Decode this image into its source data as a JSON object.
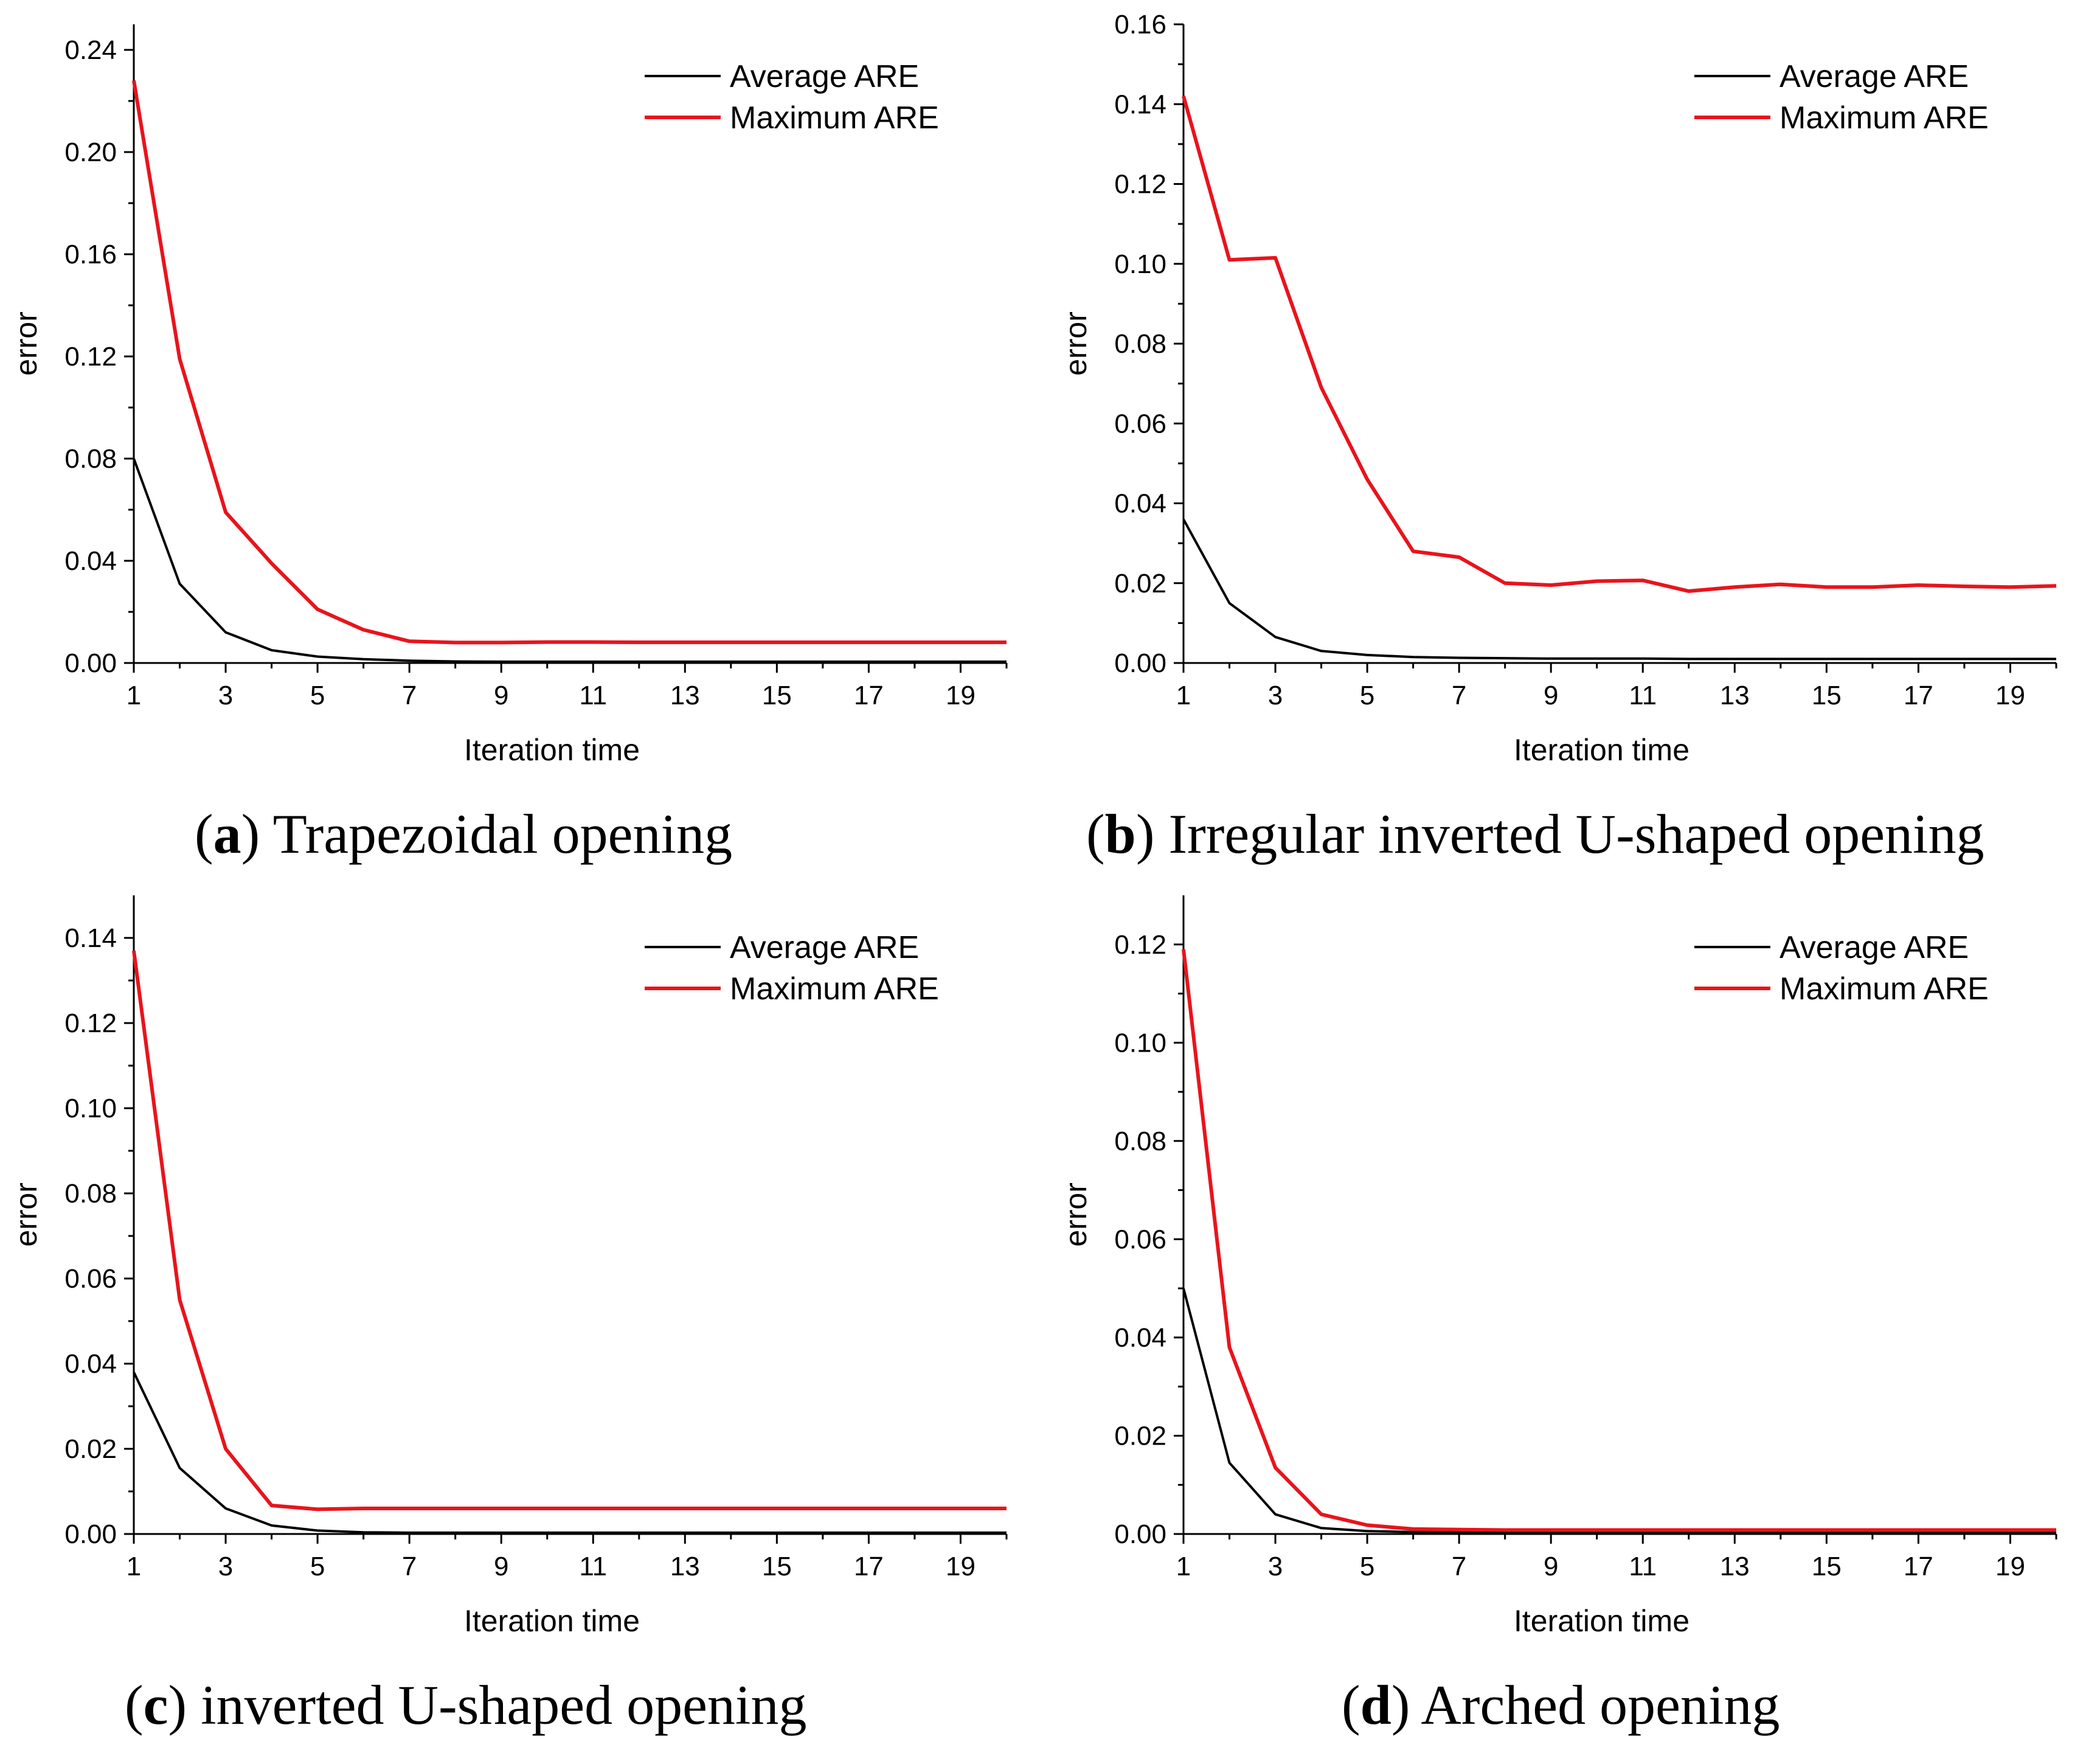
{
  "chart_data": [
    {
      "type": "line",
      "panel_letter": "a",
      "caption": "Trapezoidal opening",
      "xlabel": "Iteration time",
      "ylabel": "error",
      "xlim": [
        1,
        20
      ],
      "ylim": [
        0,
        0.25
      ],
      "xticks": [
        "1",
        "3",
        "5",
        "7",
        "9",
        "11",
        "13",
        "15",
        "17",
        "19"
      ],
      "yticks": [
        "0.00",
        "0.04",
        "0.08",
        "0.12",
        "0.16",
        "0.20",
        "0.24"
      ],
      "legend_position": "top-right",
      "x": [
        1,
        2,
        3,
        4,
        5,
        6,
        7,
        8,
        9,
        10,
        11,
        12,
        13,
        14,
        15,
        16,
        17,
        18,
        19,
        20
      ],
      "series": [
        {
          "name": "Average ARE",
          "color": "#000000",
          "values": [
            0.08,
            0.031,
            0.012,
            0.005,
            0.0025,
            0.0015,
            0.0009,
            0.0006,
            0.0005,
            0.0005,
            0.0005,
            0.0005,
            0.0005,
            0.0005,
            0.0005,
            0.0005,
            0.0005,
            0.0005,
            0.0005,
            0.0005
          ]
        },
        {
          "name": "Maximum ARE",
          "color": "#e8141c",
          "values": [
            0.228,
            0.119,
            0.059,
            0.039,
            0.021,
            0.013,
            0.0085,
            0.008,
            0.008,
            0.0082,
            0.0082,
            0.0081,
            0.0081,
            0.0081,
            0.0081,
            0.0081,
            0.0081,
            0.0081,
            0.0081,
            0.0081
          ]
        }
      ]
    },
    {
      "type": "line",
      "panel_letter": "b",
      "caption": "Irregular inverted U-shaped opening",
      "xlabel": "Iteration time",
      "ylabel": "error",
      "xlim": [
        1,
        20
      ],
      "ylim": [
        0,
        0.16
      ],
      "xticks": [
        "1",
        "3",
        "5",
        "7",
        "9",
        "11",
        "13",
        "15",
        "17",
        "19"
      ],
      "yticks": [
        "0.00",
        "0.02",
        "0.04",
        "0.06",
        "0.08",
        "0.10",
        "0.12",
        "0.14",
        "0.16"
      ],
      "legend_position": "top-right",
      "x": [
        1,
        2,
        3,
        4,
        5,
        6,
        7,
        8,
        9,
        10,
        11,
        12,
        13,
        14,
        15,
        16,
        17,
        18,
        19,
        20
      ],
      "series": [
        {
          "name": "Average ARE",
          "color": "#000000",
          "values": [
            0.036,
            0.015,
            0.0065,
            0.003,
            0.002,
            0.0015,
            0.0013,
            0.0012,
            0.0011,
            0.0011,
            0.0011,
            0.001,
            0.001,
            0.001,
            0.001,
            0.001,
            0.001,
            0.001,
            0.001,
            0.001
          ]
        },
        {
          "name": "Maximum ARE",
          "color": "#e8141c",
          "values": [
            0.142,
            0.101,
            0.1015,
            0.069,
            0.046,
            0.028,
            0.0265,
            0.02,
            0.0195,
            0.0205,
            0.0207,
            0.018,
            0.019,
            0.0197,
            0.019,
            0.019,
            0.0195,
            0.0192,
            0.019,
            0.0193
          ]
        }
      ]
    },
    {
      "type": "line",
      "panel_letter": "c",
      "caption": "inverted U-shaped opening",
      "xlabel": "Iteration time",
      "ylabel": "error",
      "xlim": [
        1,
        20
      ],
      "ylim": [
        0,
        0.15
      ],
      "xticks": [
        "1",
        "3",
        "5",
        "7",
        "9",
        "11",
        "13",
        "15",
        "17",
        "19"
      ],
      "yticks": [
        "0.00",
        "0.02",
        "0.04",
        "0.06",
        "0.08",
        "0.10",
        "0.12",
        "0.14"
      ],
      "legend_position": "top-right",
      "x": [
        1,
        2,
        3,
        4,
        5,
        6,
        7,
        8,
        9,
        10,
        11,
        12,
        13,
        14,
        15,
        16,
        17,
        18,
        19,
        20
      ],
      "series": [
        {
          "name": "Average ARE",
          "color": "#000000",
          "values": [
            0.038,
            0.0155,
            0.006,
            0.002,
            0.0008,
            0.0004,
            0.0003,
            0.0003,
            0.0003,
            0.0003,
            0.0003,
            0.0003,
            0.0003,
            0.0003,
            0.0003,
            0.0003,
            0.0003,
            0.0003,
            0.0003,
            0.0003
          ]
        },
        {
          "name": "Maximum ARE",
          "color": "#e8141c",
          "values": [
            0.137,
            0.055,
            0.02,
            0.0067,
            0.0058,
            0.006,
            0.006,
            0.006,
            0.006,
            0.006,
            0.006,
            0.006,
            0.006,
            0.006,
            0.006,
            0.006,
            0.006,
            0.006,
            0.006,
            0.006
          ]
        }
      ]
    },
    {
      "type": "line",
      "panel_letter": "d",
      "caption": "Arched opening",
      "xlabel": "Iteration time",
      "ylabel": "error",
      "xlim": [
        1,
        20
      ],
      "ylim": [
        0,
        0.13
      ],
      "xticks": [
        "1",
        "3",
        "5",
        "7",
        "9",
        "11",
        "13",
        "15",
        "17",
        "19"
      ],
      "yticks": [
        "0.00",
        "0.02",
        "0.04",
        "0.06",
        "0.08",
        "0.10",
        "0.12"
      ],
      "legend_position": "top-right",
      "x": [
        1,
        2,
        3,
        4,
        5,
        6,
        7,
        8,
        9,
        10,
        11,
        12,
        13,
        14,
        15,
        16,
        17,
        18,
        19,
        20
      ],
      "series": [
        {
          "name": "Average ARE",
          "color": "#000000",
          "values": [
            0.05,
            0.0145,
            0.004,
            0.0012,
            0.0006,
            0.0004,
            0.0003,
            0.0003,
            0.0003,
            0.0003,
            0.0003,
            0.0003,
            0.0003,
            0.0003,
            0.0003,
            0.0003,
            0.0003,
            0.0003,
            0.0003,
            0.0003
          ]
        },
        {
          "name": "Maximum ARE",
          "color": "#e8141c",
          "values": [
            0.119,
            0.038,
            0.0135,
            0.004,
            0.0018,
            0.001,
            0.0009,
            0.0008,
            0.0008,
            0.0008,
            0.0008,
            0.0008,
            0.0008,
            0.0008,
            0.0008,
            0.0008,
            0.0008,
            0.0008,
            0.0008,
            0.0008
          ]
        }
      ]
    }
  ]
}
